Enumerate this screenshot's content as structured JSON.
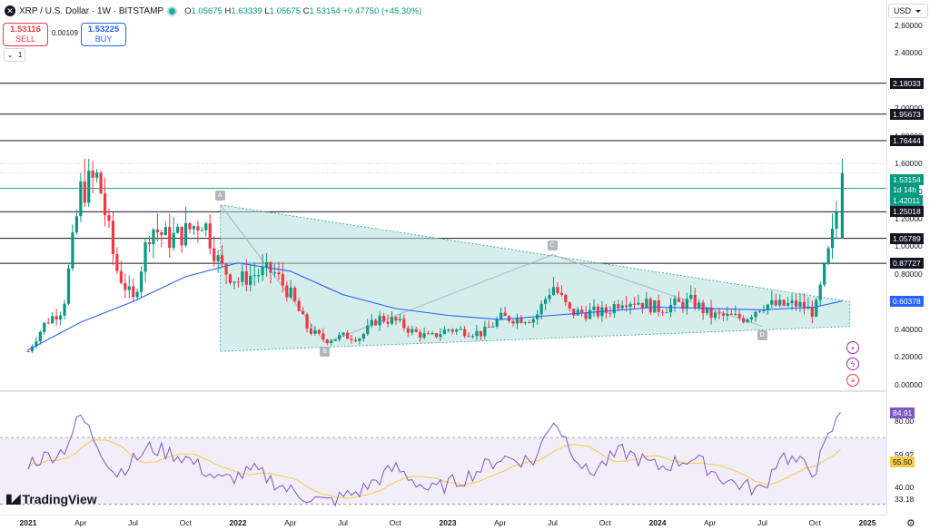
{
  "header": {
    "symbol": "XRP / U.S. Dollar · 1W · BITSTAMP",
    "ohlc": [
      {
        "k": "O",
        "v": "1.05675"
      },
      {
        "k": "H",
        "v": "1.63339"
      },
      {
        "k": "L",
        "v": "1.05675"
      },
      {
        "k": "C",
        "v": "1.53154"
      },
      {
        "k": "",
        "v": "+0.47750 (+45.30%)"
      }
    ]
  },
  "trade": {
    "sell_price": "1.53116",
    "sell_label": "SELL",
    "spread": "0.00109",
    "buy_price": "1.53225",
    "buy_label": "BUY",
    "collapse_label": "1"
  },
  "axis": {
    "currency": "USD",
    "ticks": [
      "2.60000",
      "2.40000",
      "2.20000",
      "2.00000",
      "1.80000",
      "1.60000",
      "1.40000",
      "1.20000",
      "1.00000",
      "0.80000",
      "0.60000",
      "0.40000",
      "0.20000",
      "0.00000"
    ],
    "rsi_ticks": [
      "80.00",
      "59.92",
      "40.00",
      "33.18"
    ]
  },
  "levels": [
    "2.18033",
    "1.95673",
    "1.76444",
    "1.25018",
    "1.05789",
    "0.87727"
  ],
  "price_labels": {
    "last": "1.53154",
    "countdown": "1d 14h",
    "green_level": "1.42011",
    "ma": "0.60378",
    "rsi": "84.91",
    "rsi_ma": "55.50"
  },
  "points": [
    "A",
    "B",
    "C",
    "D"
  ],
  "x_ticks": [
    "2021",
    "Apr",
    "Jul",
    "Oct",
    "2022",
    "Apr",
    "Jul",
    "Oct",
    "2023",
    "Apr",
    "Jul",
    "Oct",
    "2024",
    "Apr",
    "Jul",
    "Oct",
    "2025"
  ],
  "branding": "TradingView",
  "colors": {
    "up": "#089981",
    "down": "#f23645",
    "ma": "#2962ff",
    "rsi": "#7e57c2",
    "rsi_ma": "#f7c948",
    "triangle": "#b2dfdb"
  },
  "chart_data": {
    "type": "candlestick",
    "title": "XRP / U.S. Dollar · 1W · BITSTAMP",
    "ylim": [
      0,
      2.72
    ],
    "y_scale": "linear",
    "grid": false,
    "close_path": [
      {
        "x": "2021-01",
        "y": 0.24
      },
      {
        "x": "2021-02",
        "y": 0.45
      },
      {
        "x": "2021-03",
        "y": 0.55
      },
      {
        "x": "2021-04",
        "y": 1.4
      },
      {
        "x": "2021-05",
        "y": 1.5
      },
      {
        "x": "2021-06",
        "y": 0.85
      },
      {
        "x": "2021-07",
        "y": 0.6
      },
      {
        "x": "2021-08",
        "y": 1.15
      },
      {
        "x": "2021-09",
        "y": 1.05
      },
      {
        "x": "2021-10",
        "y": 1.1
      },
      {
        "x": "2021-11",
        "y": 1.2
      },
      {
        "x": "2021-12",
        "y": 0.85
      },
      {
        "x": "2022-01",
        "y": 0.75
      },
      {
        "x": "2022-02",
        "y": 0.8
      },
      {
        "x": "2022-03",
        "y": 0.82
      },
      {
        "x": "2022-04",
        "y": 0.65
      },
      {
        "x": "2022-05",
        "y": 0.4
      },
      {
        "x": "2022-06",
        "y": 0.32
      },
      {
        "x": "2022-07",
        "y": 0.35
      },
      {
        "x": "2022-08",
        "y": 0.34
      },
      {
        "x": "2022-09",
        "y": 0.48
      },
      {
        "x": "2022-10",
        "y": 0.46
      },
      {
        "x": "2022-11",
        "y": 0.38
      },
      {
        "x": "2022-12",
        "y": 0.34
      },
      {
        "x": "2023-01",
        "y": 0.4
      },
      {
        "x": "2023-03",
        "y": 0.37
      },
      {
        "x": "2023-04",
        "y": 0.48
      },
      {
        "x": "2023-06",
        "y": 0.48
      },
      {
        "x": "2023-07",
        "y": 0.72
      },
      {
        "x": "2023-08",
        "y": 0.52
      },
      {
        "x": "2023-10",
        "y": 0.52
      },
      {
        "x": "2023-11",
        "y": 0.62
      },
      {
        "x": "2023-12",
        "y": 0.6
      },
      {
        "x": "2024-01",
        "y": 0.55
      },
      {
        "x": "2024-03",
        "y": 0.6
      },
      {
        "x": "2024-04",
        "y": 0.5
      },
      {
        "x": "2024-06",
        "y": 0.48
      },
      {
        "x": "2024-07",
        "y": 0.58
      },
      {
        "x": "2024-08",
        "y": 0.57
      },
      {
        "x": "2024-09",
        "y": 0.58
      },
      {
        "x": "2024-10",
        "y": 0.52
      },
      {
        "x": "2024-11",
        "y": 1.06
      },
      {
        "x": "2024-11-18",
        "y": 1.53
      }
    ],
    "last_candle": {
      "open": 1.05675,
      "high": 1.63339,
      "low": 1.05675,
      "close": 1.53154
    },
    "ma_line": [
      {
        "x": "2021-01",
        "y": 0.25
      },
      {
        "x": "2021-04",
        "y": 0.45
      },
      {
        "x": "2021-07",
        "y": 0.6
      },
      {
        "x": "2021-10",
        "y": 0.78
      },
      {
        "x": "2022-01",
        "y": 0.88
      },
      {
        "x": "2022-04",
        "y": 0.82
      },
      {
        "x": "2022-07",
        "y": 0.65
      },
      {
        "x": "2022-10",
        "y": 0.55
      },
      {
        "x": "2023-01",
        "y": 0.5
      },
      {
        "x": "2023-04",
        "y": 0.47
      },
      {
        "x": "2023-07",
        "y": 0.5
      },
      {
        "x": "2023-10",
        "y": 0.53
      },
      {
        "x": "2024-01",
        "y": 0.56
      },
      {
        "x": "2024-04",
        "y": 0.55
      },
      {
        "x": "2024-07",
        "y": 0.54
      },
      {
        "x": "2024-10",
        "y": 0.56
      },
      {
        "x": "2024-11-18",
        "y": 0.60378
      }
    ],
    "triangle": {
      "upper": [
        {
          "x": "2021-12",
          "y": 1.3
        },
        {
          "x": "2024-12",
          "y": 0.6
        }
      ],
      "lower": [
        {
          "x": "2021-12",
          "y": 0.24
        },
        {
          "x": "2024-12",
          "y": 0.42
        }
      ]
    },
    "abcd": [
      {
        "label": "A",
        "x": "2021-12",
        "y": 1.3
      },
      {
        "label": "B",
        "x": "2022-06",
        "y": 0.3
      },
      {
        "label": "C",
        "x": "2023-07",
        "y": 0.94
      },
      {
        "label": "D",
        "x": "2024-07",
        "y": 0.42
      }
    ],
    "rsi": {
      "ylim": [
        25,
        95
      ],
      "bands": [
        30,
        70
      ],
      "last": 84.91,
      "ma_last": 55.5,
      "path": [
        {
          "x": "2021-01",
          "y": 55
        },
        {
          "x": "2021-03",
          "y": 62
        },
        {
          "x": "2021-04",
          "y": 83
        },
        {
          "x": "2021-06",
          "y": 48
        },
        {
          "x": "2021-08",
          "y": 64
        },
        {
          "x": "2021-10",
          "y": 58
        },
        {
          "x": "2021-12",
          "y": 44
        },
        {
          "x": "2022-02",
          "y": 50
        },
        {
          "x": "2022-04",
          "y": 38
        },
        {
          "x": "2022-06",
          "y": 31
        },
        {
          "x": "2022-08",
          "y": 38
        },
        {
          "x": "2022-10",
          "y": 52
        },
        {
          "x": "2022-12",
          "y": 38
        },
        {
          "x": "2023-02",
          "y": 46
        },
        {
          "x": "2023-04",
          "y": 58
        },
        {
          "x": "2023-06",
          "y": 56
        },
        {
          "x": "2023-07",
          "y": 82
        },
        {
          "x": "2023-09",
          "y": 48
        },
        {
          "x": "2023-11",
          "y": 62
        },
        {
          "x": "2024-01",
          "y": 52
        },
        {
          "x": "2024-03",
          "y": 58
        },
        {
          "x": "2024-05",
          "y": 44
        },
        {
          "x": "2024-07",
          "y": 38
        },
        {
          "x": "2024-08",
          "y": 60
        },
        {
          "x": "2024-10",
          "y": 50
        },
        {
          "x": "2024-11",
          "y": 75
        },
        {
          "x": "2024-11-18",
          "y": 84.91
        }
      ]
    }
  }
}
